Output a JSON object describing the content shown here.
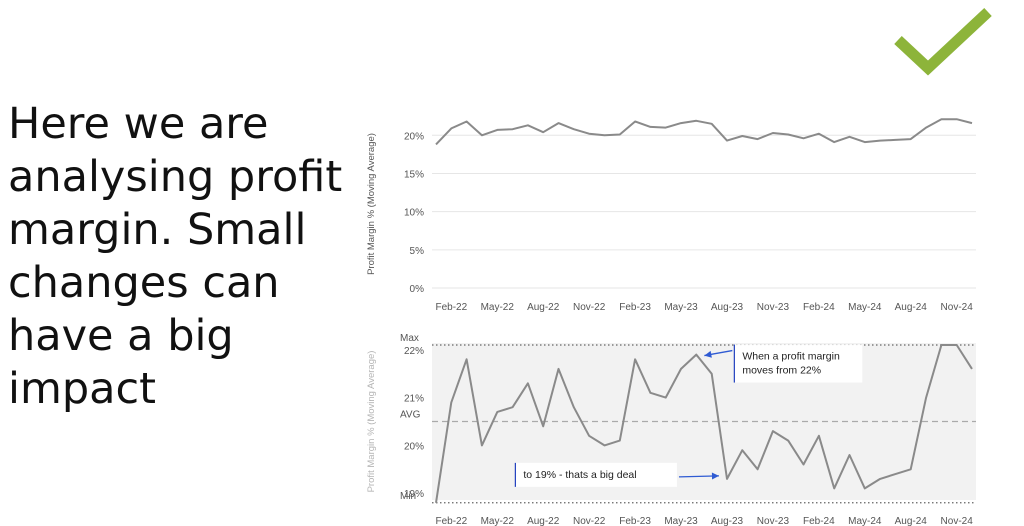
{
  "slide": {
    "lines": [
      "Here we are",
      "analysing profit",
      "margin. Small",
      "changes can",
      "have a big",
      "impact"
    ]
  },
  "colors": {
    "check": "#8db43a",
    "line": "#8a8a8a",
    "annotation_arrow": "#2f5bd3",
    "band": "#f2f2f2"
  },
  "chart_data": [
    {
      "type": "line",
      "ylabel": "Profit Margin % (Moving Average)",
      "ylim": [
        0,
        22
      ],
      "yticks": [
        0,
        5,
        10,
        15,
        20
      ],
      "ytick_labels": [
        "0%",
        "5%",
        "10%",
        "15%",
        "20%"
      ],
      "xtick_labels": [
        "Feb-22",
        "May-22",
        "Aug-22",
        "Nov-22",
        "Feb-23",
        "May-23",
        "Aug-23",
        "Nov-23",
        "Feb-24",
        "May-24",
        "Aug-24",
        "Nov-24"
      ],
      "grid": true,
      "x": [
        "Jan-22",
        "Feb-22",
        "Mar-22",
        "Apr-22",
        "May-22",
        "Jun-22",
        "Jul-22",
        "Aug-22",
        "Sep-22",
        "Oct-22",
        "Nov-22",
        "Dec-22",
        "Jan-23",
        "Feb-23",
        "Mar-23",
        "Apr-23",
        "May-23",
        "Jun-23",
        "Jul-23",
        "Aug-23",
        "Sep-23",
        "Oct-23",
        "Nov-23",
        "Dec-23",
        "Jan-24",
        "Feb-24",
        "Mar-24",
        "Apr-24",
        "May-24",
        "Jun-24",
        "Jul-24",
        "Aug-24",
        "Sep-24",
        "Oct-24",
        "Nov-24",
        "Dec-24"
      ],
      "values": [
        18.8,
        20.9,
        21.8,
        20.0,
        20.7,
        20.8,
        21.3,
        20.4,
        21.6,
        20.8,
        20.2,
        20.0,
        20.1,
        21.8,
        21.1,
        21.0,
        21.6,
        21.9,
        21.5,
        19.3,
        19.9,
        19.5,
        20.3,
        20.1,
        19.6,
        20.2,
        19.1,
        19.8,
        19.1,
        19.3,
        19.4,
        19.5,
        21.0,
        22.1,
        22.1,
        21.6
      ]
    },
    {
      "type": "line",
      "ylabel": "Profit Margin % (Moving Average)",
      "ylim": [
        18.9,
        22.1
      ],
      "yticks": [
        19,
        20,
        21,
        22
      ],
      "ytick_labels": [
        "19%",
        "20%",
        "21%",
        "22%"
      ],
      "xtick_labels": [
        "Feb-22",
        "May-22",
        "Aug-22",
        "Nov-22",
        "Feb-23",
        "May-23",
        "Aug-23",
        "Nov-23",
        "Feb-24",
        "May-24",
        "Aug-24",
        "Nov-24"
      ],
      "reference_lines": [
        {
          "label": "Max",
          "value": 22.1
        },
        {
          "label": "AVG",
          "value": 20.5
        },
        {
          "label": "Min",
          "value": 18.8
        }
      ],
      "annotations": [
        {
          "text": [
            "When a profit margin",
            "moves from 22%"
          ],
          "target_x": "Jun-23"
        },
        {
          "text": [
            "to 19%  - thats a big deal"
          ],
          "target_x": "Aug-23"
        }
      ],
      "x": [
        "Jan-22",
        "Feb-22",
        "Mar-22",
        "Apr-22",
        "May-22",
        "Jun-22",
        "Jul-22",
        "Aug-22",
        "Sep-22",
        "Oct-22",
        "Nov-22",
        "Dec-22",
        "Jan-23",
        "Feb-23",
        "Mar-23",
        "Apr-23",
        "May-23",
        "Jun-23",
        "Jul-23",
        "Aug-23",
        "Sep-23",
        "Oct-23",
        "Nov-23",
        "Dec-23",
        "Jan-24",
        "Feb-24",
        "Mar-24",
        "Apr-24",
        "May-24",
        "Jun-24",
        "Jul-24",
        "Aug-24",
        "Sep-24",
        "Oct-24",
        "Nov-24",
        "Dec-24"
      ],
      "values": [
        18.8,
        20.9,
        21.8,
        20.0,
        20.7,
        20.8,
        21.3,
        20.4,
        21.6,
        20.8,
        20.2,
        20.0,
        20.1,
        21.8,
        21.1,
        21.0,
        21.6,
        21.9,
        21.5,
        19.3,
        19.9,
        19.5,
        20.3,
        20.1,
        19.6,
        20.2,
        19.1,
        19.8,
        19.1,
        19.3,
        19.4,
        19.5,
        21.0,
        22.1,
        22.1,
        21.6
      ]
    }
  ]
}
